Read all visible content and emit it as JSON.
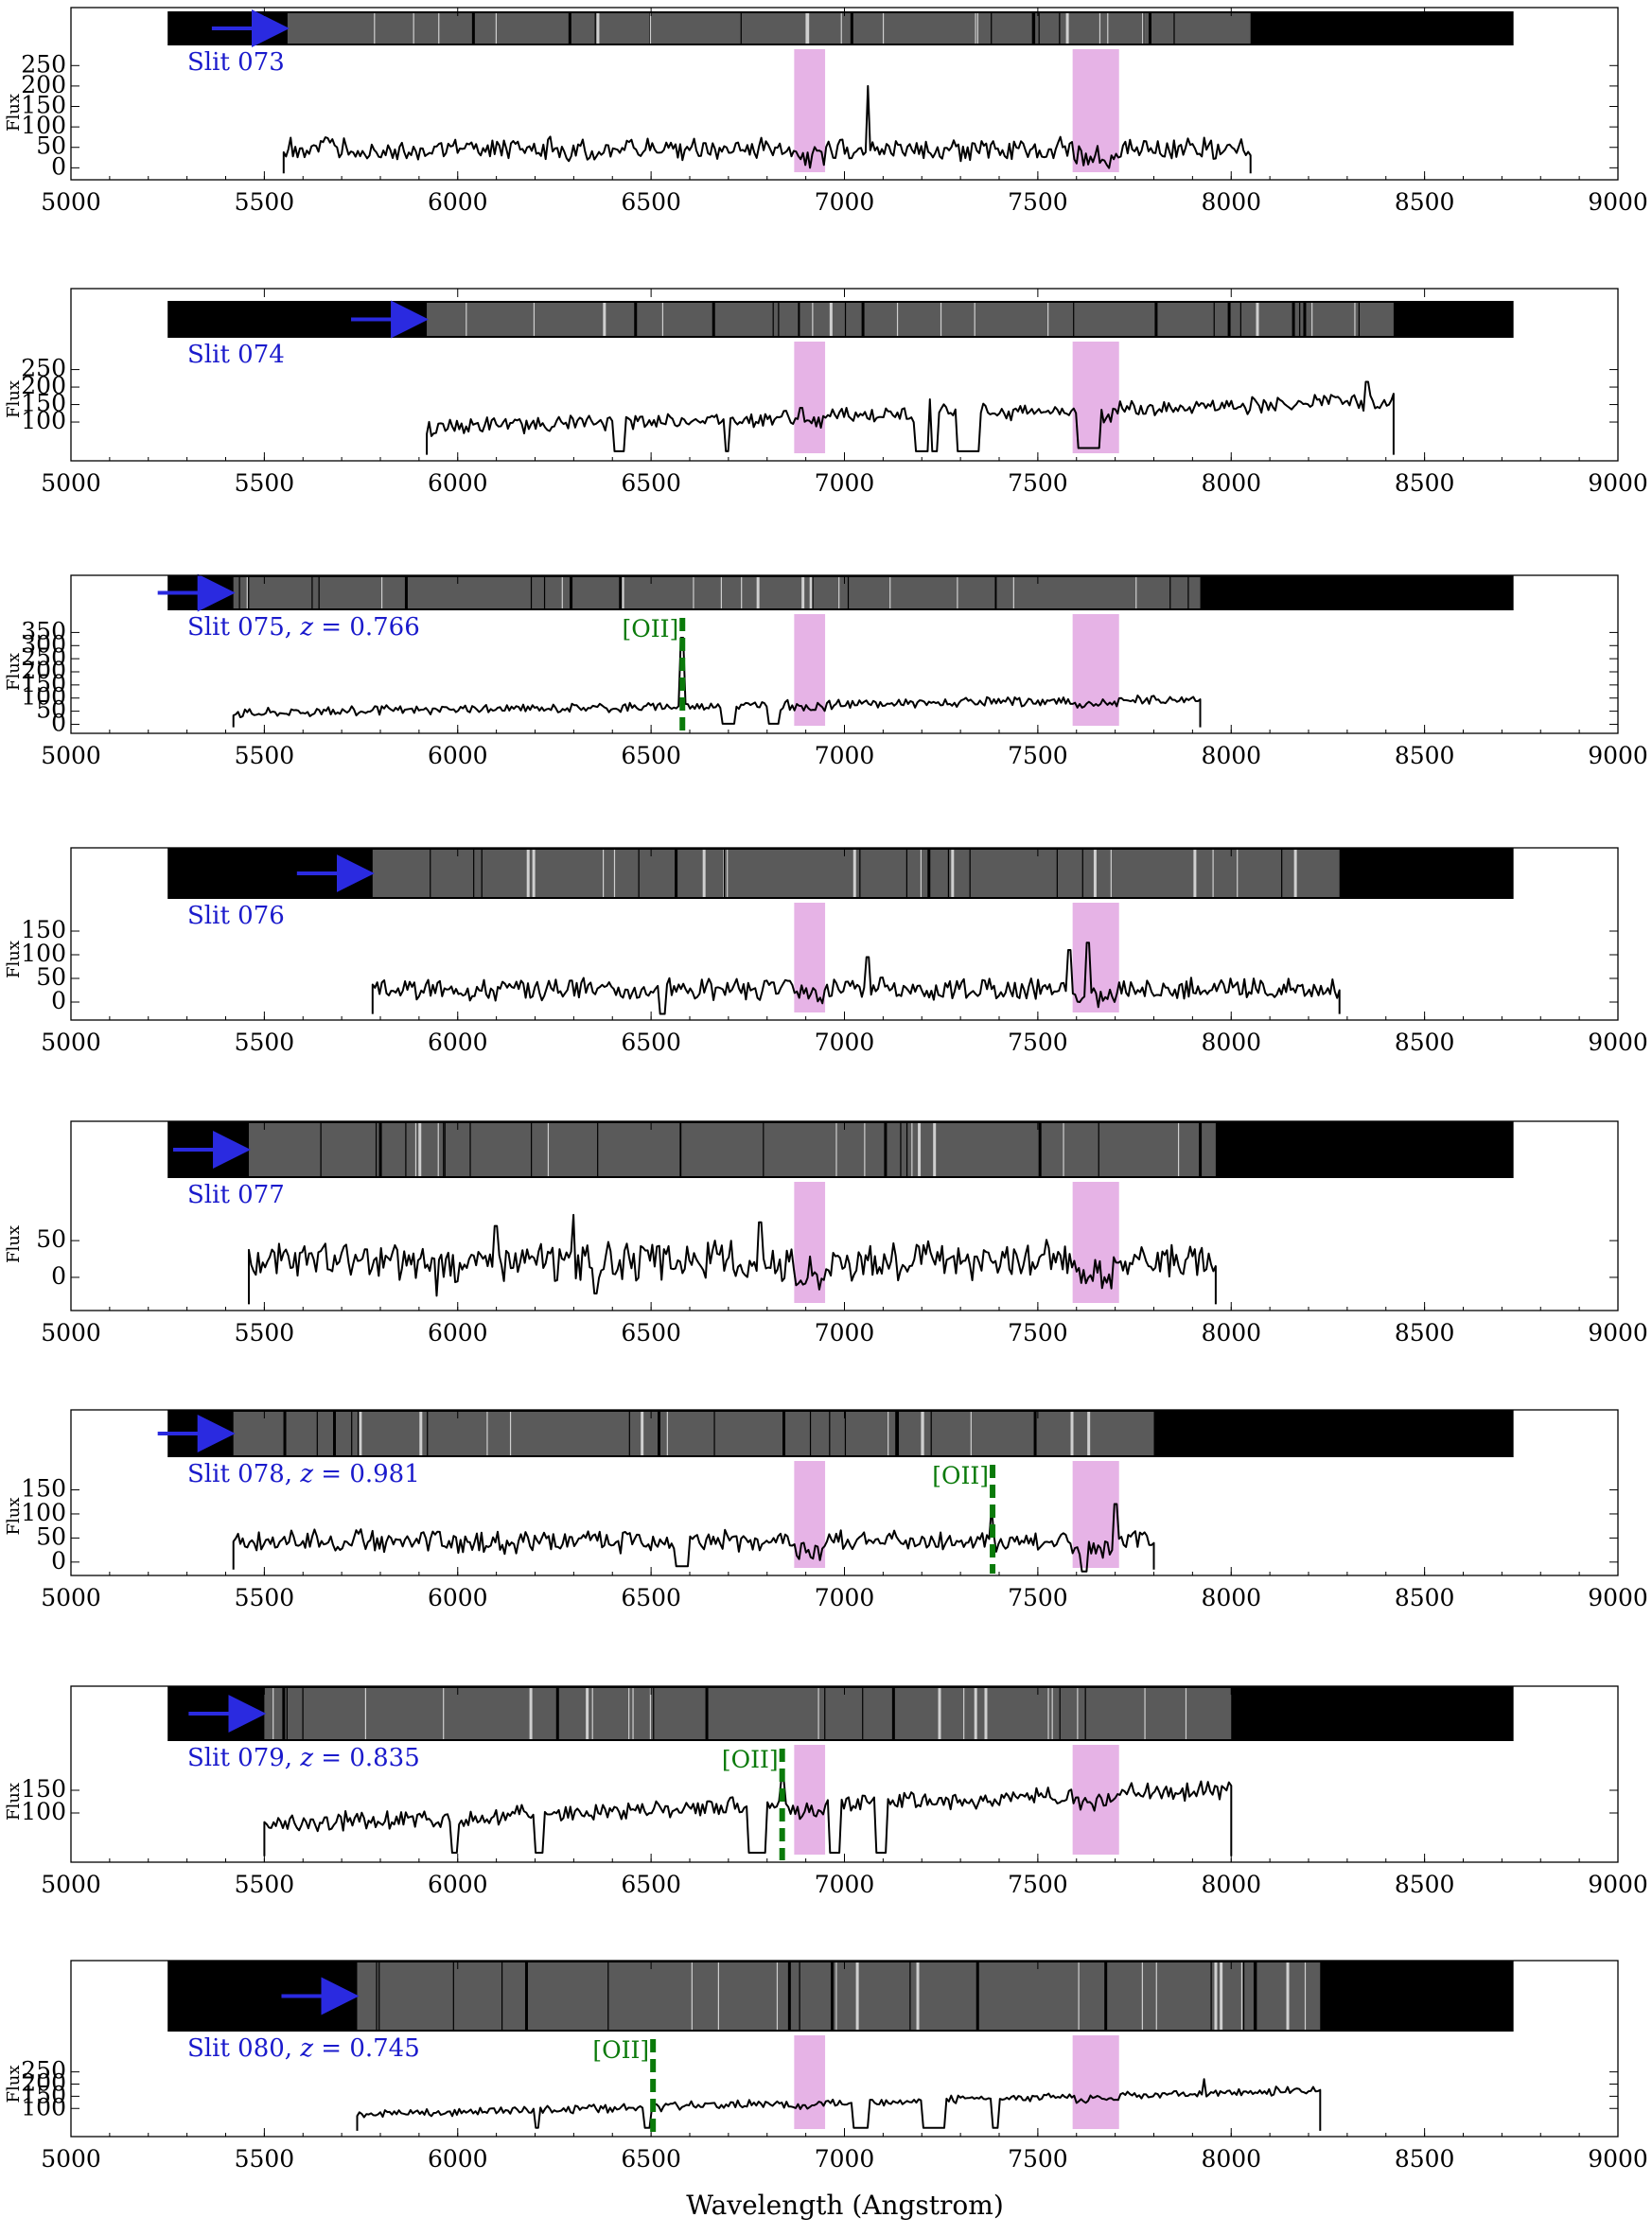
{
  "figure": {
    "xlabel": "Wavelength (Angstrom)",
    "ylabel": "Flux",
    "colors": {
      "slit_label": "#1a1acc",
      "arrow": "#2a2ae0",
      "line_marker": "#0a7a0a",
      "telluric_band": "#e6b3e6",
      "spectrum": "#000000",
      "image_background": "#000000"
    },
    "telluric_bands": [
      [
        6870,
        6950
      ],
      [
        7590,
        7710
      ]
    ],
    "image_strip_xrange": [
      5250,
      8730
    ]
  },
  "chart_data": [
    {
      "type": "line",
      "label": "Slit 073",
      "xlim": [
        5000,
        9000
      ],
      "xticks": [
        5000,
        5500,
        6000,
        6500,
        7000,
        7500,
        8000,
        8500,
        9000
      ],
      "yticks": [
        0,
        50,
        100,
        150,
        200,
        250
      ],
      "ylim": [
        -20,
        290
      ],
      "x_range": [
        5550,
        8050
      ],
      "base_level": 45,
      "noise": 22,
      "spikes": [
        [
          7060,
          200
        ]
      ],
      "gaps": [],
      "dips": [],
      "slope": 0,
      "seed": 73,
      "image_data_start": 5560,
      "image_data_end": 8050,
      "line_marker": null
    },
    {
      "type": "line",
      "label": "Slit 074",
      "xlim": [
        5000,
        9000
      ],
      "xticks": [
        5000,
        5500,
        6000,
        6500,
        7000,
        7500,
        8000,
        8500,
        9000
      ],
      "yticks": [
        100,
        150,
        200,
        250
      ],
      "ylim": [
        0,
        330
      ],
      "x_range": [
        5920,
        8420
      ],
      "base_level": 85,
      "noise": 18,
      "spikes": [
        [
          8350,
          215
        ],
        [
          7220,
          165
        ],
        [
          6890,
          155
        ]
      ],
      "gaps": [
        [
          6400,
          6430
        ],
        [
          6690,
          6700
        ],
        [
          7180,
          7240
        ],
        [
          7290,
          7350
        ]
      ],
      "dips": [
        [
          7600,
          7660,
          40
        ]
      ],
      "slope": 0.03,
      "seed": 74,
      "image_data_start": 5920,
      "image_data_end": 8420,
      "line_marker": null
    },
    {
      "type": "line",
      "label": "Slit 075, z = 0.766",
      "redshift": "0.766",
      "xlim": [
        5000,
        9000
      ],
      "xticks": [
        5000,
        5500,
        6000,
        6500,
        7000,
        7500,
        8000,
        8500,
        9000
      ],
      "yticks": [
        0,
        50,
        100,
        150,
        200,
        250,
        300,
        350
      ],
      "ylim": [
        -20,
        420
      ],
      "x_range": [
        5420,
        7920
      ],
      "base_level": 45,
      "noise": 14,
      "spikes": [
        [
          6580,
          330
        ]
      ],
      "gaps": [
        [
          6680,
          6720
        ],
        [
          6800,
          6830
        ]
      ],
      "dips": [],
      "slope": 0.02,
      "seed": 75,
      "image_data_start": 5420,
      "image_data_end": 7920,
      "line_marker": {
        "label": "[OII]",
        "x": 6581
      }
    },
    {
      "type": "line",
      "label": "Slit 076",
      "xlim": [
        5000,
        9000
      ],
      "xticks": [
        5000,
        5500,
        6000,
        6500,
        7000,
        7500,
        8000,
        8500,
        9000
      ],
      "yticks": [
        0,
        50,
        100,
        150
      ],
      "ylim": [
        -30,
        210
      ],
      "x_range": [
        5780,
        8280
      ],
      "base_level": 28,
      "noise": 18,
      "spikes": [
        [
          7580,
          110
        ],
        [
          7630,
          140
        ],
        [
          7060,
          95
        ]
      ],
      "gaps": [],
      "dips": [
        [
          6520,
          6540,
          -25
        ]
      ],
      "slope": 0,
      "seed": 76,
      "image_data_start": 5780,
      "image_data_end": 8280,
      "line_marker": null
    },
    {
      "type": "line",
      "label": "Slit 077",
      "xlim": [
        5000,
        9000
      ],
      "xticks": [
        5000,
        5500,
        6000,
        6500,
        7000,
        7500,
        8000,
        8500,
        9000
      ],
      "yticks": [
        0,
        50
      ],
      "ylim": [
        -40,
        130
      ],
      "x_range": [
        5460,
        7960
      ],
      "base_level": 22,
      "noise": 20,
      "spikes": [
        [
          6300,
          85
        ],
        [
          6780,
          75
        ],
        [
          6100,
          70
        ]
      ],
      "gaps": [],
      "dips": [
        [
          5940,
          5950,
          -25
        ],
        [
          6350,
          6360,
          -22
        ]
      ],
      "slope": 0,
      "seed": 77,
      "image_data_start": 5460,
      "image_data_end": 7960,
      "line_marker": null
    },
    {
      "type": "line",
      "label": "Slit 078, z = 0.981",
      "redshift": "0.981",
      "xlim": [
        5000,
        9000
      ],
      "xticks": [
        5000,
        5500,
        6000,
        6500,
        7000,
        7500,
        8000,
        8500,
        9000
      ],
      "yticks": [
        0,
        50,
        100,
        150
      ],
      "ylim": [
        -20,
        210
      ],
      "x_range": [
        5420,
        7800
      ],
      "base_level": 42,
      "noise": 18,
      "spikes": [
        [
          7380,
          115
        ],
        [
          7700,
          135
        ]
      ],
      "gaps": [
        [
          6560,
          6600
        ]
      ],
      "dips": [
        [
          7610,
          7630,
          -5
        ]
      ],
      "slope": 0,
      "seed": 78,
      "image_data_start": 5420,
      "image_data_end": 7800,
      "line_marker": {
        "label": "[OII]",
        "x": 7383
      }
    },
    {
      "type": "line",
      "label": "Slit 079, z = 0.835",
      "redshift": "0.835",
      "xlim": [
        5000,
        9000
      ],
      "xticks": [
        5000,
        5500,
        6000,
        6500,
        7000,
        7500,
        8000,
        8500,
        9000
      ],
      "yticks": [
        100,
        150
      ],
      "ylim": [
        0,
        250
      ],
      "x_range": [
        5500,
        8000
      ],
      "base_level": 75,
      "noise": 16,
      "spikes": [
        [
          6840,
          175
        ],
        [
          8000,
          160
        ]
      ],
      "gaps": [
        [
          5980,
          6000
        ],
        [
          6200,
          6220
        ],
        [
          6750,
          6800
        ],
        [
          6960,
          6990
        ],
        [
          7080,
          7110
        ]
      ],
      "dips": [],
      "slope": 0.03,
      "seed": 79,
      "image_data_start": 5500,
      "image_data_end": 8000,
      "line_marker": {
        "label": "[OII]",
        "x": 6839
      }
    },
    {
      "type": "line",
      "label": "Slit 080, z = 0.745",
      "redshift": "0.745",
      "xlim": [
        5000,
        9000
      ],
      "xticks": [
        5000,
        5500,
        6000,
        6500,
        7000,
        7500,
        8000,
        8500,
        9000
      ],
      "yticks": [
        100,
        150,
        200,
        250
      ],
      "ylim": [
        0,
        400
      ],
      "x_range": [
        5740,
        8230
      ],
      "base_level": 75,
      "noise": 14,
      "spikes": [
        [
          7930,
          220
        ]
      ],
      "gaps": [
        [
          6200,
          6210
        ],
        [
          6480,
          6500
        ],
        [
          7020,
          7060
        ],
        [
          7200,
          7260
        ],
        [
          7380,
          7400
        ]
      ],
      "dips": [],
      "slope": 0.04,
      "seed": 80,
      "image_data_start": 5740,
      "image_data_end": 8230,
      "line_marker": {
        "label": "[OII]",
        "x": 6505
      }
    }
  ]
}
